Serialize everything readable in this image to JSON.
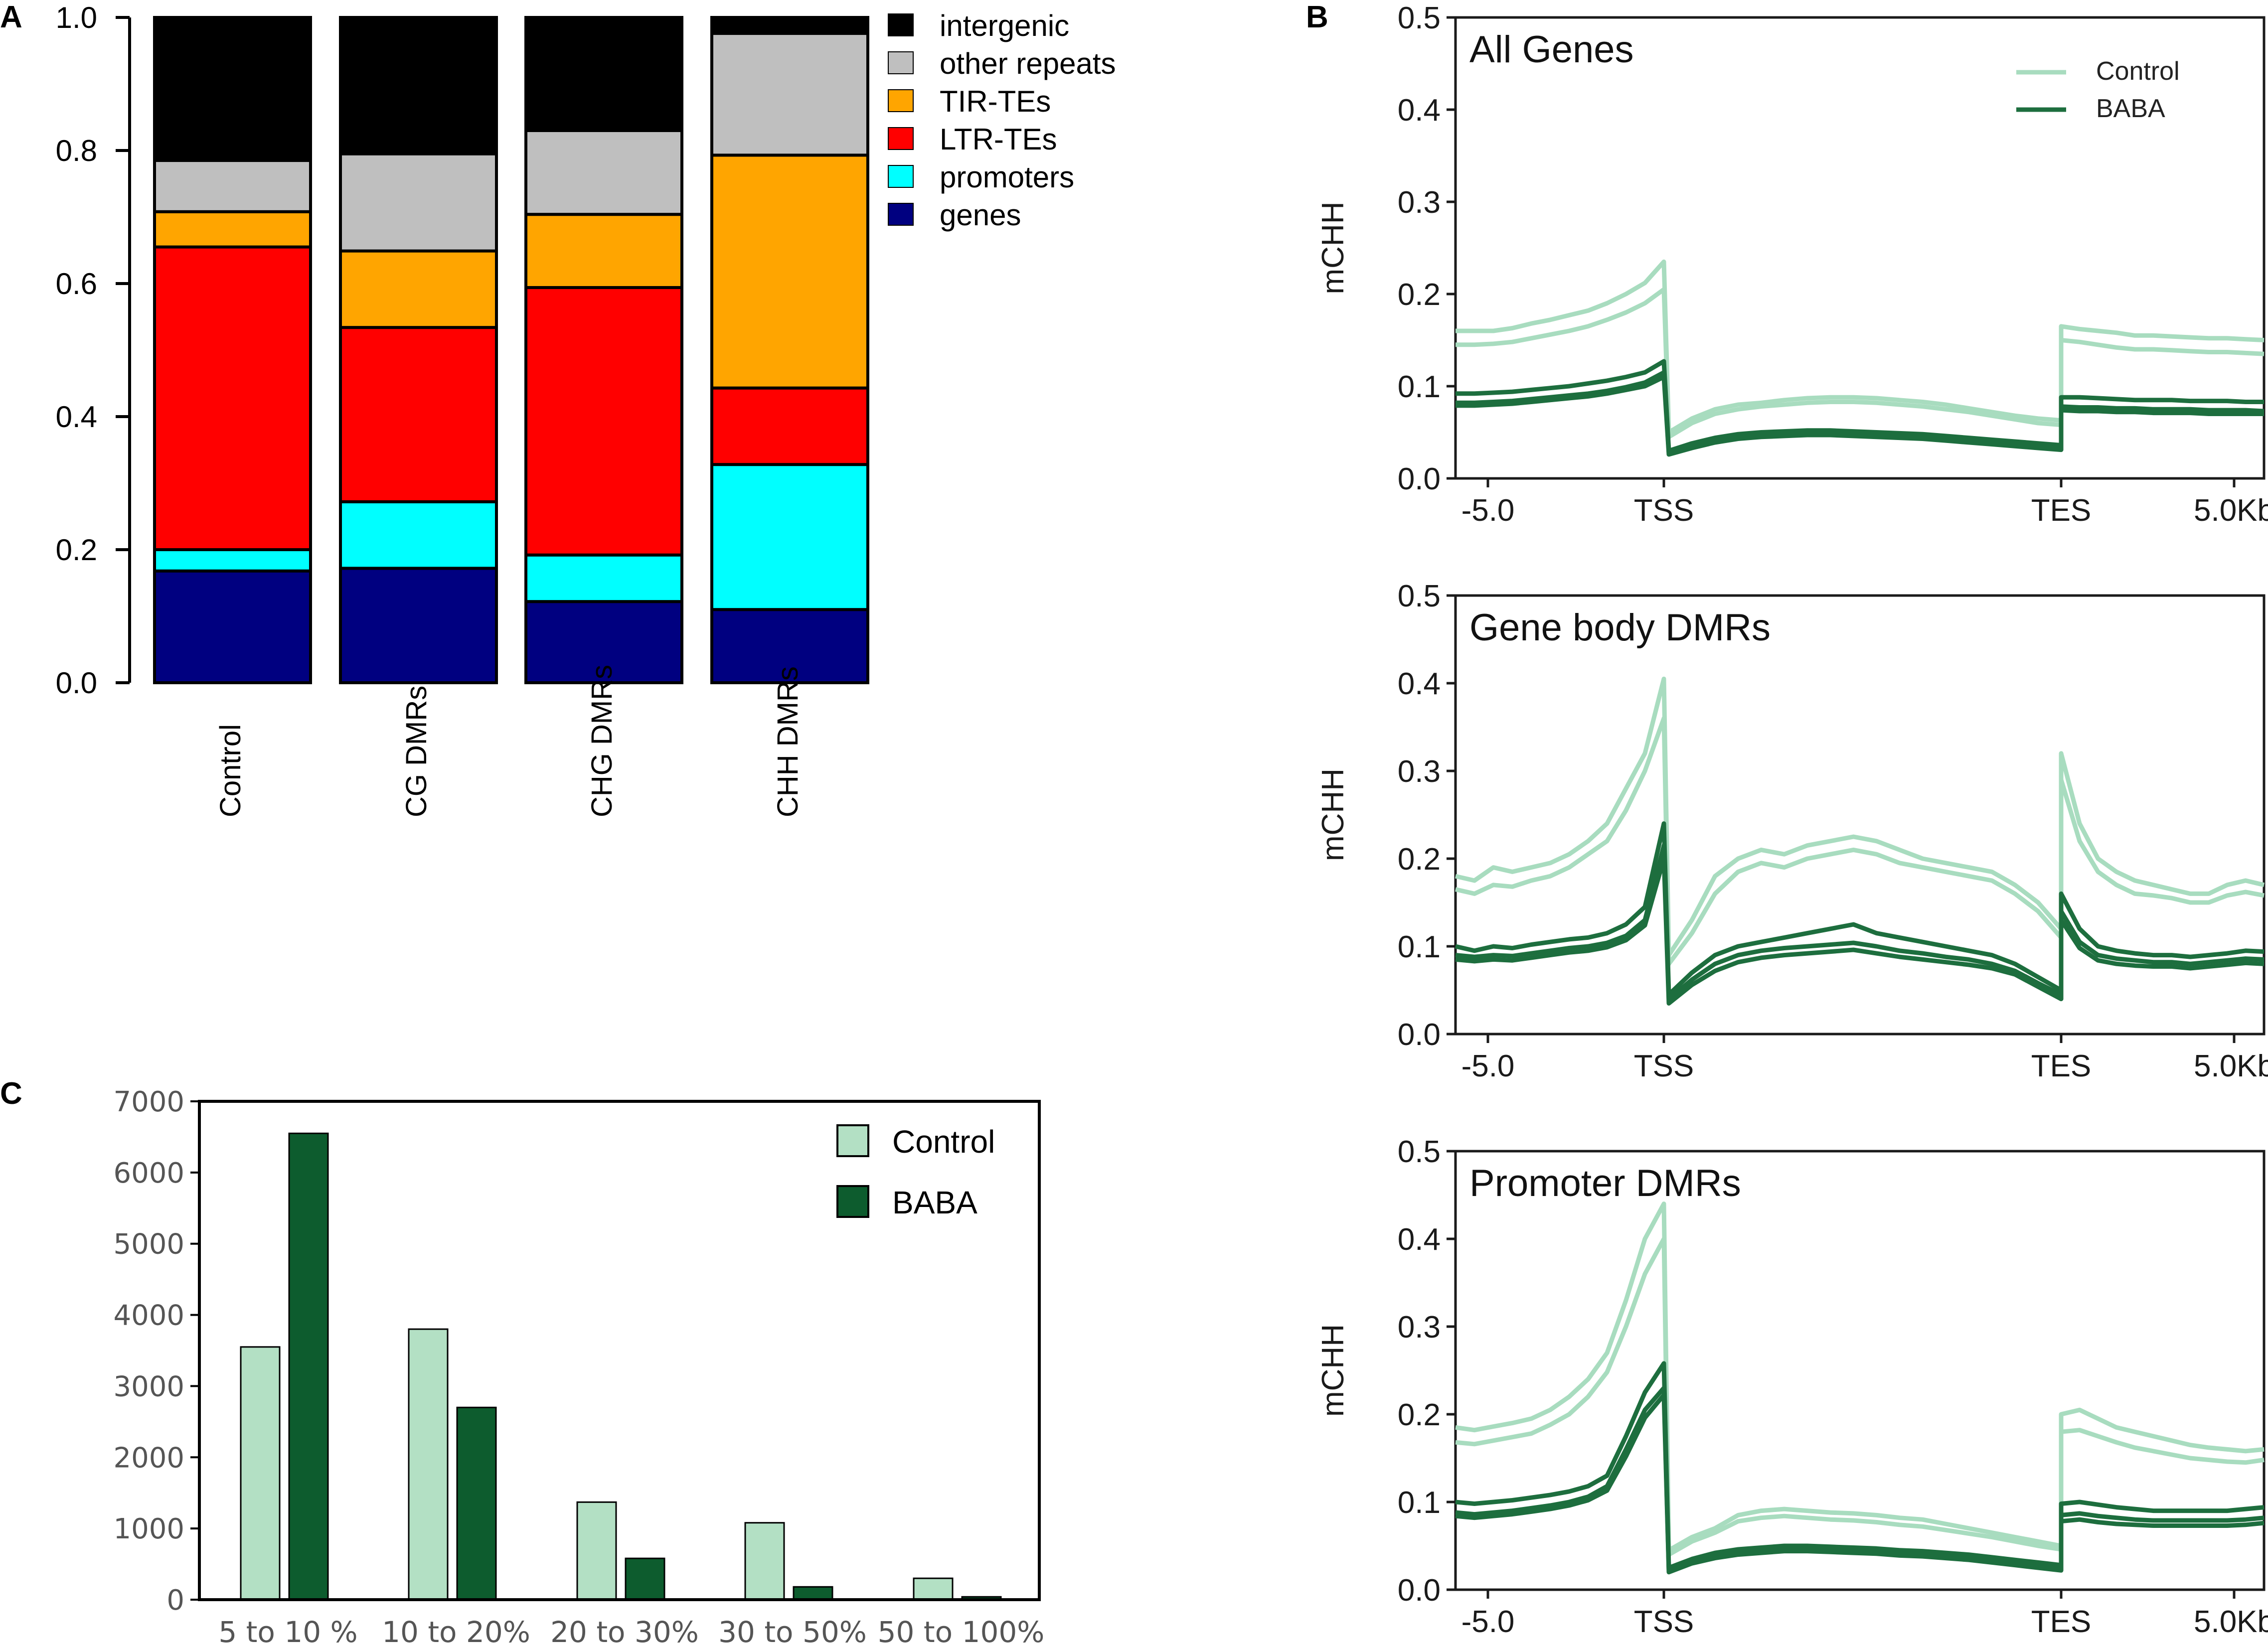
{
  "panels": {
    "a": {
      "letter": "A"
    },
    "b": {
      "letter": "B"
    },
    "c": {
      "letter": "C"
    }
  },
  "colors": {
    "intergenic": "#000000",
    "other_repeats": "#bfbfbf",
    "tir_tes": "#ffa500",
    "ltr_tes": "#ff0000",
    "promoters": "#00ffff",
    "genes": "#000080",
    "control_line": "#a8dcbf",
    "baba_line": "#1d6e3e",
    "control_bar": "#b3e0c4",
    "baba_bar": "#0d5c2e"
  },
  "chart_data": [
    {
      "id": "A",
      "type": "bar",
      "stacked": true,
      "categories": [
        "Control",
        "CG DMRs",
        "CHG DMRs",
        "CHH DMRs"
      ],
      "ylim": [
        0,
        1.0
      ],
      "yticks": [
        "0.0",
        "0.2",
        "0.4",
        "0.6",
        "0.8",
        "1.0"
      ],
      "series": [
        {
          "name": "genes",
          "key": "genes",
          "values": [
            0.168,
            0.172,
            0.122,
            0.11
          ]
        },
        {
          "name": "promoters",
          "key": "promoters",
          "values": [
            0.032,
            0.1,
            0.07,
            0.218
          ]
        },
        {
          "name": "LTR-TEs",
          "key": "ltr_tes",
          "values": [
            0.455,
            0.262,
            0.402,
            0.115
          ]
        },
        {
          "name": "TIR-TEs",
          "key": "tir_tes",
          "values": [
            0.053,
            0.115,
            0.11,
            0.35
          ]
        },
        {
          "name": "other repeats",
          "key": "other_repeats",
          "values": [
            0.077,
            0.146,
            0.126,
            0.183
          ]
        },
        {
          "name": "intergenic",
          "key": "intergenic",
          "values": [
            0.215,
            0.205,
            0.17,
            0.024
          ]
        }
      ],
      "legend": [
        "intergenic",
        "other repeats",
        "TIR-TEs",
        "LTR-TEs",
        "promoters",
        "genes"
      ]
    },
    {
      "id": "B1",
      "type": "line",
      "title": "All Genes",
      "ylabel": "mCHH",
      "ylim": [
        0,
        0.5
      ],
      "yticks": [
        "0.0",
        "0.1",
        "0.2",
        "0.3",
        "0.4",
        "0.5"
      ],
      "xticks": [
        "-5.0",
        "TSS",
        "TES",
        "5.0Kb"
      ],
      "legend": [
        "Control",
        "BABA"
      ],
      "series": [
        {
          "name": "Control",
          "values": [
            0.16,
            0.16,
            0.16,
            0.163,
            0.168,
            0.172,
            0.177,
            0.182,
            0.19,
            0.2,
            0.212,
            0.235,
            0.05,
            0.065,
            0.075,
            0.08,
            0.082,
            0.085,
            0.087,
            0.088,
            0.088,
            0.087,
            0.085,
            0.083,
            0.08,
            0.076,
            0.072,
            0.068,
            0.065,
            0.063,
            0.165,
            0.162,
            0.16,
            0.158,
            0.155,
            0.155,
            0.154,
            0.153,
            0.152,
            0.152,
            0.151,
            0.15
          ]
        },
        {
          "name": "Control",
          "values": [
            0.145,
            0.145,
            0.146,
            0.148,
            0.152,
            0.156,
            0.16,
            0.165,
            0.172,
            0.18,
            0.19,
            0.205,
            0.045,
            0.06,
            0.07,
            0.075,
            0.078,
            0.08,
            0.082,
            0.083,
            0.083,
            0.082,
            0.08,
            0.078,
            0.075,
            0.072,
            0.068,
            0.064,
            0.06,
            0.058,
            0.15,
            0.148,
            0.145,
            0.142,
            0.14,
            0.14,
            0.139,
            0.138,
            0.137,
            0.137,
            0.136,
            0.135
          ]
        },
        {
          "name": "BABA",
          "values": [
            0.092,
            0.092,
            0.093,
            0.094,
            0.096,
            0.098,
            0.1,
            0.103,
            0.106,
            0.11,
            0.115,
            0.127,
            0.03,
            0.038,
            0.044,
            0.048,
            0.05,
            0.051,
            0.052,
            0.052,
            0.051,
            0.05,
            0.049,
            0.048,
            0.046,
            0.044,
            0.042,
            0.04,
            0.038,
            0.036,
            0.088,
            0.088,
            0.087,
            0.086,
            0.085,
            0.085,
            0.085,
            0.084,
            0.084,
            0.084,
            0.083,
            0.083
          ]
        },
        {
          "name": "BABA",
          "values": [
            0.082,
            0.082,
            0.083,
            0.084,
            0.086,
            0.088,
            0.09,
            0.092,
            0.095,
            0.099,
            0.104,
            0.115,
            0.028,
            0.035,
            0.041,
            0.045,
            0.047,
            0.048,
            0.049,
            0.049,
            0.048,
            0.047,
            0.046,
            0.045,
            0.043,
            0.041,
            0.039,
            0.037,
            0.035,
            0.033,
            0.078,
            0.077,
            0.077,
            0.076,
            0.076,
            0.075,
            0.075,
            0.075,
            0.074,
            0.074,
            0.074,
            0.073
          ]
        },
        {
          "name": "BABA",
          "values": [
            0.079,
            0.079,
            0.08,
            0.081,
            0.083,
            0.085,
            0.087,
            0.089,
            0.092,
            0.096,
            0.1,
            0.11,
            0.026,
            0.033,
            0.039,
            0.043,
            0.045,
            0.046,
            0.047,
            0.047,
            0.046,
            0.045,
            0.044,
            0.043,
            0.041,
            0.039,
            0.037,
            0.035,
            0.033,
            0.031,
            0.074,
            0.073,
            0.073,
            0.072,
            0.072,
            0.071,
            0.071,
            0.071,
            0.07,
            0.07,
            0.07,
            0.07
          ]
        }
      ]
    },
    {
      "id": "B2",
      "type": "line",
      "title": "Gene body DMRs",
      "ylabel": "mCHH",
      "ylim": [
        0,
        0.5
      ],
      "yticks": [
        "0.0",
        "0.1",
        "0.2",
        "0.3",
        "0.4",
        "0.5"
      ],
      "xticks": [
        "-5.0",
        "TSS",
        "TES",
        "5.0Kb"
      ],
      "series": [
        {
          "name": "Control",
          "values": [
            0.18,
            0.175,
            0.19,
            0.185,
            0.19,
            0.195,
            0.205,
            0.22,
            0.24,
            0.28,
            0.32,
            0.405,
            0.09,
            0.13,
            0.18,
            0.2,
            0.21,
            0.205,
            0.215,
            0.22,
            0.225,
            0.22,
            0.21,
            0.2,
            0.195,
            0.19,
            0.185,
            0.17,
            0.15,
            0.12,
            0.32,
            0.24,
            0.2,
            0.185,
            0.175,
            0.17,
            0.165,
            0.16,
            0.16,
            0.17,
            0.175,
            0.17
          ]
        },
        {
          "name": "Control",
          "values": [
            0.165,
            0.16,
            0.17,
            0.168,
            0.175,
            0.18,
            0.19,
            0.205,
            0.22,
            0.255,
            0.3,
            0.36,
            0.08,
            0.115,
            0.16,
            0.185,
            0.195,
            0.19,
            0.2,
            0.205,
            0.21,
            0.205,
            0.195,
            0.19,
            0.185,
            0.18,
            0.175,
            0.16,
            0.14,
            0.11,
            0.29,
            0.22,
            0.185,
            0.17,
            0.16,
            0.158,
            0.155,
            0.15,
            0.15,
            0.158,
            0.162,
            0.158
          ]
        },
        {
          "name": "BABA",
          "values": [
            0.1,
            0.095,
            0.1,
            0.098,
            0.102,
            0.105,
            0.108,
            0.11,
            0.115,
            0.125,
            0.145,
            0.24,
            0.045,
            0.07,
            0.09,
            0.1,
            0.105,
            0.11,
            0.115,
            0.12,
            0.125,
            0.115,
            0.11,
            0.105,
            0.1,
            0.095,
            0.09,
            0.08,
            0.065,
            0.05,
            0.16,
            0.12,
            0.1,
            0.095,
            0.092,
            0.09,
            0.09,
            0.088,
            0.09,
            0.092,
            0.095,
            0.094
          ]
        },
        {
          "name": "BABA",
          "values": [
            0.09,
            0.088,
            0.09,
            0.089,
            0.092,
            0.095,
            0.098,
            0.1,
            0.104,
            0.112,
            0.13,
            0.215,
            0.04,
            0.062,
            0.08,
            0.09,
            0.095,
            0.098,
            0.1,
            0.102,
            0.104,
            0.1,
            0.095,
            0.092,
            0.088,
            0.085,
            0.08,
            0.072,
            0.058,
            0.045,
            0.14,
            0.105,
            0.09,
            0.086,
            0.084,
            0.082,
            0.082,
            0.08,
            0.082,
            0.084,
            0.086,
            0.085
          ]
        },
        {
          "name": "BABA",
          "values": [
            0.085,
            0.083,
            0.085,
            0.084,
            0.087,
            0.09,
            0.093,
            0.095,
            0.099,
            0.107,
            0.124,
            0.2,
            0.035,
            0.056,
            0.072,
            0.082,
            0.087,
            0.09,
            0.092,
            0.094,
            0.096,
            0.092,
            0.088,
            0.085,
            0.082,
            0.079,
            0.075,
            0.068,
            0.054,
            0.04,
            0.13,
            0.098,
            0.084,
            0.08,
            0.078,
            0.077,
            0.077,
            0.075,
            0.077,
            0.079,
            0.081,
            0.08
          ]
        }
      ]
    },
    {
      "id": "B3",
      "type": "line",
      "title": "Promoter DMRs",
      "ylabel": "mCHH",
      "ylim": [
        0,
        0.5
      ],
      "yticks": [
        "0.0",
        "0.1",
        "0.2",
        "0.3",
        "0.4",
        "0.5"
      ],
      "xticks": [
        "-5.0",
        "TSS",
        "TES",
        "5.0Kb"
      ],
      "series": [
        {
          "name": "Control",
          "values": [
            0.185,
            0.182,
            0.186,
            0.19,
            0.195,
            0.205,
            0.22,
            0.24,
            0.27,
            0.33,
            0.4,
            0.44,
            0.045,
            0.06,
            0.07,
            0.085,
            0.09,
            0.092,
            0.09,
            0.088,
            0.087,
            0.085,
            0.082,
            0.08,
            0.075,
            0.07,
            0.065,
            0.06,
            0.055,
            0.05,
            0.2,
            0.205,
            0.195,
            0.185,
            0.18,
            0.175,
            0.17,
            0.165,
            0.162,
            0.16,
            0.158,
            0.16
          ]
        },
        {
          "name": "Control",
          "values": [
            0.168,
            0.166,
            0.17,
            0.174,
            0.178,
            0.188,
            0.2,
            0.22,
            0.248,
            0.3,
            0.36,
            0.4,
            0.04,
            0.055,
            0.065,
            0.078,
            0.082,
            0.084,
            0.082,
            0.08,
            0.079,
            0.077,
            0.074,
            0.072,
            0.068,
            0.064,
            0.06,
            0.055,
            0.05,
            0.046,
            0.18,
            0.182,
            0.175,
            0.168,
            0.162,
            0.158,
            0.154,
            0.15,
            0.148,
            0.146,
            0.145,
            0.148
          ]
        },
        {
          "name": "BABA",
          "values": [
            0.1,
            0.098,
            0.1,
            0.102,
            0.105,
            0.108,
            0.112,
            0.118,
            0.13,
            0.175,
            0.225,
            0.258,
            0.025,
            0.035,
            0.042,
            0.046,
            0.048,
            0.05,
            0.05,
            0.049,
            0.048,
            0.047,
            0.045,
            0.044,
            0.042,
            0.04,
            0.037,
            0.034,
            0.031,
            0.028,
            0.098,
            0.1,
            0.097,
            0.094,
            0.092,
            0.09,
            0.09,
            0.09,
            0.09,
            0.09,
            0.092,
            0.094
          ]
        },
        {
          "name": "BABA",
          "values": [
            0.088,
            0.086,
            0.088,
            0.09,
            0.093,
            0.096,
            0.1,
            0.106,
            0.118,
            0.16,
            0.205,
            0.23,
            0.022,
            0.032,
            0.038,
            0.042,
            0.044,
            0.046,
            0.046,
            0.045,
            0.044,
            0.043,
            0.041,
            0.04,
            0.038,
            0.036,
            0.033,
            0.03,
            0.027,
            0.025,
            0.085,
            0.087,
            0.084,
            0.082,
            0.08,
            0.079,
            0.079,
            0.079,
            0.079,
            0.079,
            0.08,
            0.082
          ]
        },
        {
          "name": "BABA",
          "values": [
            0.084,
            0.082,
            0.084,
            0.086,
            0.089,
            0.092,
            0.096,
            0.102,
            0.113,
            0.152,
            0.196,
            0.222,
            0.02,
            0.03,
            0.036,
            0.04,
            0.042,
            0.044,
            0.044,
            0.043,
            0.042,
            0.041,
            0.039,
            0.038,
            0.036,
            0.034,
            0.031,
            0.028,
            0.025,
            0.022,
            0.078,
            0.08,
            0.077,
            0.075,
            0.074,
            0.073,
            0.073,
            0.073,
            0.073,
            0.073,
            0.074,
            0.076
          ]
        }
      ]
    },
    {
      "id": "C",
      "type": "bar",
      "categories": [
        "5 to 10 %",
        "10 to 20%",
        "20 to 30%",
        "30 to 50%",
        "50 to 100%"
      ],
      "ylim": [
        0,
        7000
      ],
      "yticks": [
        "0",
        "1000",
        "2000",
        "3000",
        "4000",
        "5000",
        "6000",
        "7000"
      ],
      "series": [
        {
          "name": "Control",
          "values": [
            3550,
            3800,
            1370,
            1080,
            300
          ]
        },
        {
          "name": "BABA",
          "values": [
            6550,
            2700,
            580,
            180,
            40
          ]
        }
      ],
      "legend": [
        "Control",
        "BABA"
      ]
    }
  ]
}
